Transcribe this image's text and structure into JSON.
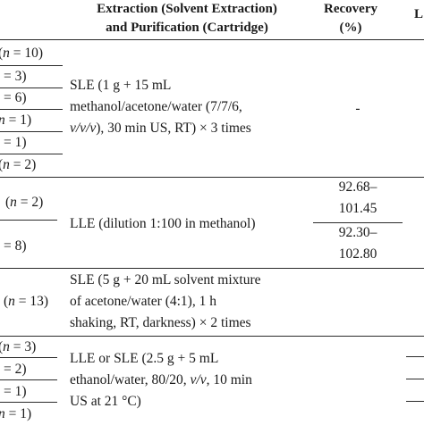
{
  "headers": {
    "extraction_line1": "Extraction (Solvent Extraction)",
    "extraction_line2": "and Purification (Cartridge)",
    "recovery_line1": "Recovery",
    "recovery_line2": "(%)",
    "last_col_partial": "L"
  },
  "rows": {
    "group1_n": [
      "(n = 10)",
      "= 3)",
      "= 6)",
      "n = 1)",
      "= 1)",
      "(n = 2)"
    ],
    "group1_method": [
      "SLE (1 g + 15 mL",
      "methanol/acetone/water (7/7/6,",
      "v/v/v), 30 min US, RT) × 3 times"
    ],
    "group1_recovery": "-",
    "group2_n": [
      "(n = 2)",
      "= 8)"
    ],
    "group2_method": "LLE (dilution 1:100 in methanol)",
    "group2_recovery_a": [
      "92.68–",
      "101.45"
    ],
    "group2_recovery_b": [
      "92.30–",
      "102.80"
    ],
    "group3_n": "(n = 13)",
    "group3_method": [
      "SLE (5 g + 20 mL solvent mixture",
      "of acetone/water (4:1), 1 h",
      "shaking, RT, darkness) × 2 times"
    ],
    "group4_n": [
      "(n = 3)",
      "= 2)",
      "= 1)",
      "n = 1)"
    ],
    "group4_method": [
      "LLE or SLE (2.5 g + 5 mL",
      "ethanol/water, 80/20, v/v, 10 min",
      "US at 21 °C)"
    ]
  }
}
